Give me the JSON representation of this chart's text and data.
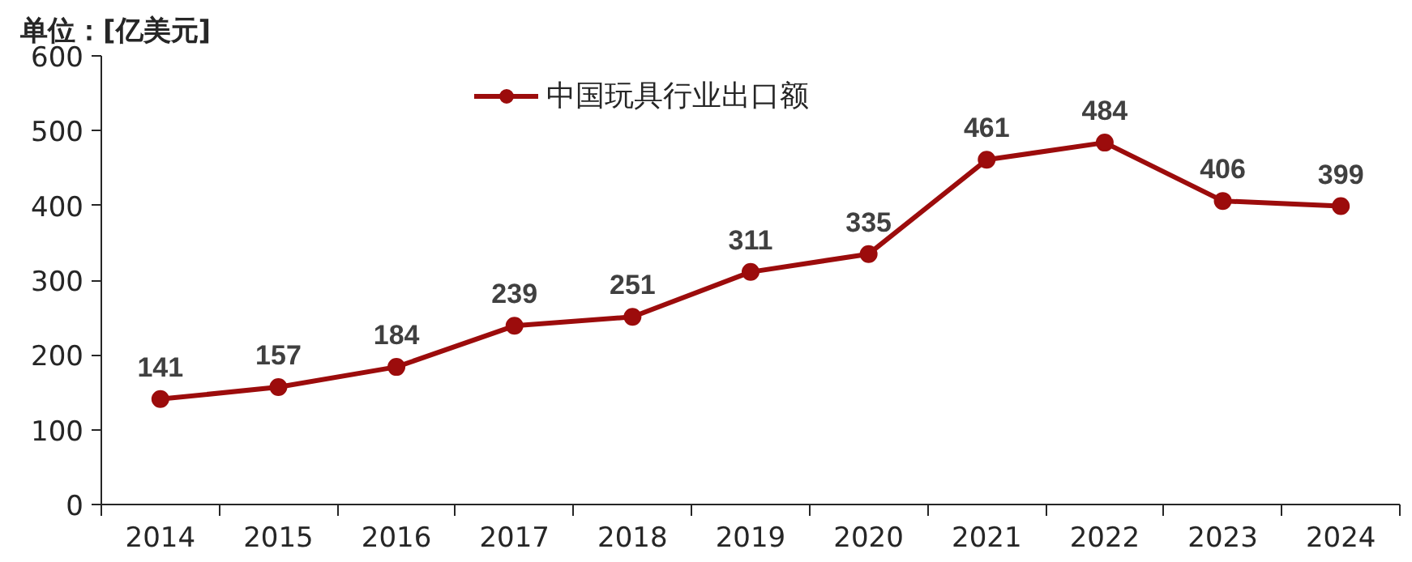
{
  "chart_data": {
    "type": "line",
    "ylabel": "单位：[亿美元]",
    "categories": [
      "2014",
      "2015",
      "2016",
      "2017",
      "2018",
      "2019",
      "2020",
      "2021",
      "2022",
      "2023",
      "2024"
    ],
    "series": [
      {
        "name": "中国玩具行业出口额",
        "color": "#9c0c0c",
        "values": [
          141,
          157,
          184,
          239,
          251,
          311,
          335,
          461,
          484,
          406,
          399
        ]
      }
    ],
    "ylim": [
      0,
      600
    ],
    "yticks": [
      0,
      100,
      200,
      300,
      400,
      500,
      600
    ],
    "grid": false,
    "legend": "top",
    "marker": "circle",
    "line_style": "solid",
    "data_labels": true
  }
}
